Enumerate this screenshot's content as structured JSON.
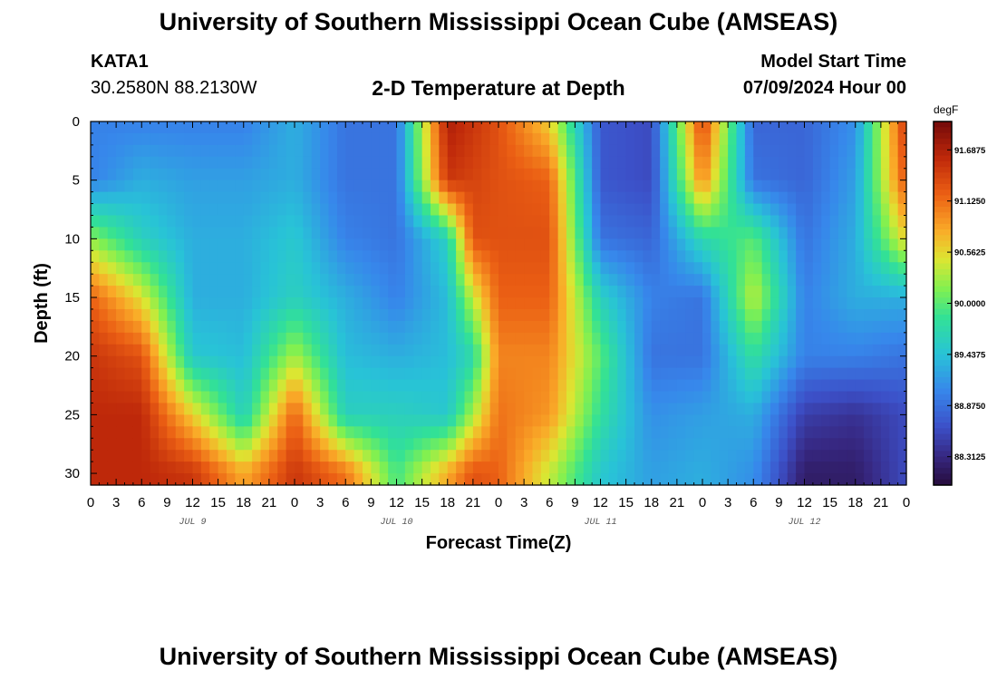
{
  "header": {
    "title": "University of Southern Mississippi Ocean Cube (AMSEAS)",
    "station_name": "KATA1",
    "station_coords": "30.2580N  88.2130W",
    "chart_title": "2-D Temperature at Depth",
    "model_start_label": "Model Start Time",
    "model_start_value": "07/09/2024 Hour 00"
  },
  "footer": {
    "title": "University of Southern Mississippi Ocean Cube (AMSEAS)"
  },
  "chart_data": {
    "type": "heatmap",
    "title": "2-D Temperature at Depth",
    "xlabel": "Forecast Time(Z)",
    "ylabel": "Depth (ft)",
    "x_tick_labels": [
      "0",
      "3",
      "6",
      "9",
      "12",
      "15",
      "18",
      "21",
      "0",
      "3",
      "6",
      "9",
      "12",
      "15",
      "18",
      "21",
      "0",
      "3",
      "6",
      "9",
      "12",
      "15",
      "18",
      "21",
      "0",
      "3",
      "6",
      "9",
      "12",
      "15",
      "18",
      "21",
      "0"
    ],
    "x_range_hours": [
      0,
      96
    ],
    "day_labels": [
      {
        "label": "JUL 9",
        "hour": 12
      },
      {
        "label": "JUL 10",
        "hour": 36
      },
      {
        "label": "JUL 11",
        "hour": 60
      },
      {
        "label": "JUL 12",
        "hour": 84
      }
    ],
    "y_ticks": [
      0,
      5,
      10,
      15,
      20,
      25,
      30
    ],
    "y_range": [
      0,
      31
    ],
    "y_inverted": true,
    "colorbar": {
      "unit": "degF",
      "range": [
        88.0,
        92.0
      ],
      "tick_labels": [
        "91.6875",
        "91.1250",
        "90.5625",
        "90.0000",
        "89.4375",
        "88.8750",
        "88.3125"
      ],
      "tick_values": [
        91.6875,
        91.125,
        90.5625,
        90.0,
        89.4375,
        88.875,
        88.3125
      ]
    },
    "depths": [
      0,
      5,
      10,
      15,
      20,
      25,
      30
    ],
    "profile_hours": [
      0,
      6,
      12,
      18,
      24,
      30,
      36,
      42,
      45,
      48,
      54,
      60,
      66,
      72,
      78,
      84,
      90,
      96
    ],
    "temperature_profiles": [
      [
        89.0,
        89.0,
        90.2,
        91.2,
        91.5,
        91.6,
        91.6
      ],
      [
        89.0,
        89.3,
        89.6,
        90.5,
        91.3,
        91.6,
        91.6
      ],
      [
        89.0,
        89.2,
        89.3,
        89.3,
        89.5,
        90.6,
        91.5
      ],
      [
        89.0,
        89.2,
        89.3,
        89.3,
        89.4,
        89.6,
        90.8
      ],
      [
        89.3,
        89.3,
        89.5,
        89.6,
        90.3,
        91.2,
        91.5
      ],
      [
        88.9,
        88.9,
        89.0,
        89.3,
        89.4,
        89.6,
        91.1
      ],
      [
        88.9,
        88.9,
        88.9,
        89.0,
        89.3,
        89.6,
        89.9
      ],
      [
        91.7,
        91.5,
        89.6,
        89.4,
        89.4,
        89.5,
        90.8
      ],
      [
        91.5,
        91.4,
        91.3,
        90.4,
        89.7,
        90.3,
        91.3
      ],
      [
        91.3,
        91.3,
        91.3,
        91.2,
        91.0,
        91.1,
        91.2
      ],
      [
        90.6,
        91.2,
        91.3,
        91.2,
        91.0,
        90.9,
        90.4
      ],
      [
        88.7,
        88.7,
        88.9,
        89.6,
        90.0,
        89.8,
        89.5
      ],
      [
        88.6,
        88.6,
        88.8,
        89.0,
        88.9,
        89.1,
        89.2
      ],
      [
        91.4,
        91.0,
        89.7,
        88.9,
        88.9,
        89.2,
        89.3
      ],
      [
        88.8,
        88.9,
        90.0,
        90.4,
        89.8,
        89.3,
        89.1
      ],
      [
        88.8,
        88.8,
        88.9,
        89.0,
        89.0,
        88.5,
        88.2
      ],
      [
        89.1,
        89.2,
        89.3,
        89.3,
        89.0,
        88.4,
        88.2
      ],
      [
        91.5,
        91.3,
        90.6,
        89.3,
        88.9,
        88.6,
        88.6
      ]
    ]
  }
}
